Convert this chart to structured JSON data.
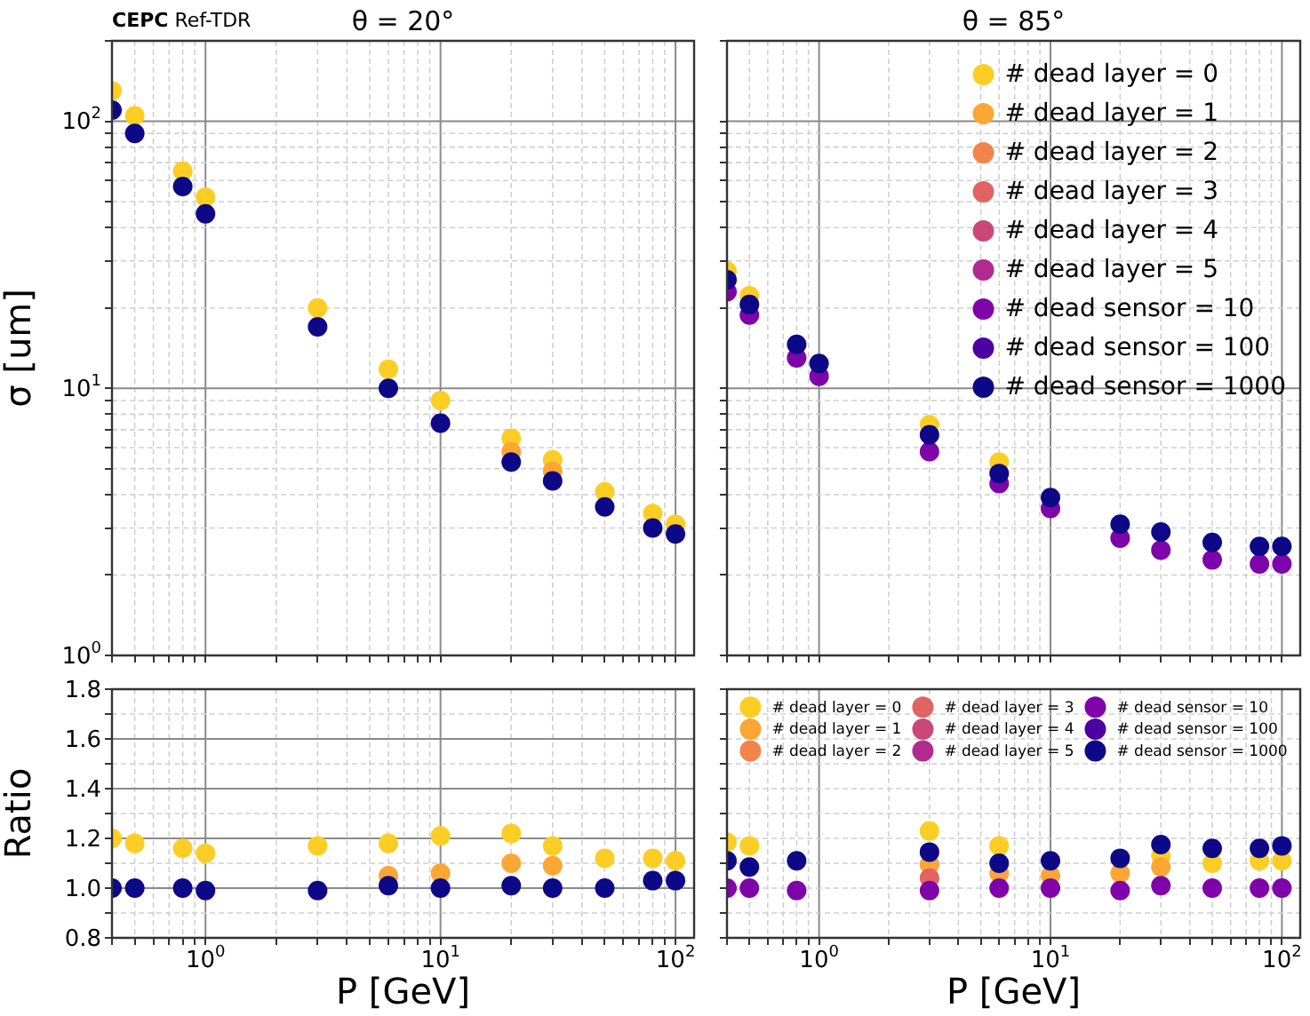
{
  "chart_data": [
    {
      "type": "scatter",
      "title": "θ = 20°",
      "ylabel": "σ [um]",
      "annotations": [
        "CEPC Ref-TDR"
      ],
      "log": "xy",
      "grid": true,
      "marker": "circle",
      "tick_labels": "y",
      "x": [
        0.4,
        0.5,
        0.8,
        1,
        3,
        6,
        10,
        20,
        30,
        50,
        80,
        100
      ],
      "xlim": [
        0.4,
        120
      ],
      "ylim": [
        1,
        200
      ],
      "xticks": [
        {
          "value": 0.4,
          "label": null
        },
        {
          "value": 0.5,
          "label": null
        },
        {
          "value": 0.6,
          "label": null
        },
        {
          "value": 0.7,
          "label": null
        },
        {
          "value": 0.8,
          "label": null
        },
        {
          "value": 0.9,
          "label": null
        },
        {
          "value": 1,
          "label": null
        },
        {
          "value": 2,
          "label": null
        },
        {
          "value": 3,
          "label": null
        },
        {
          "value": 4,
          "label": null
        },
        {
          "value": 5,
          "label": null
        },
        {
          "value": 6,
          "label": null
        },
        {
          "value": 7,
          "label": null
        },
        {
          "value": 8,
          "label": null
        },
        {
          "value": 9,
          "label": null
        },
        {
          "value": 10,
          "label": null
        },
        {
          "value": 20,
          "label": null
        },
        {
          "value": 30,
          "label": null
        },
        {
          "value": 40,
          "label": null
        },
        {
          "value": 50,
          "label": null
        },
        {
          "value": 60,
          "label": null
        },
        {
          "value": 70,
          "label": null
        },
        {
          "value": 80,
          "label": null
        },
        {
          "value": 90,
          "label": null
        },
        {
          "value": 100,
          "label": null
        }
      ],
      "yticks": [
        {
          "value": 1,
          "label": "10$^{0}$"
        },
        {
          "value": 2,
          "label": null
        },
        {
          "value": 3,
          "label": null
        },
        {
          "value": 4,
          "label": null
        },
        {
          "value": 5,
          "label": null
        },
        {
          "value": 6,
          "label": null
        },
        {
          "value": 7,
          "label": null
        },
        {
          "value": 8,
          "label": null
        },
        {
          "value": 9,
          "label": null
        },
        {
          "value": 10,
          "label": "10$^{1}$"
        },
        {
          "value": 20,
          "label": null
        },
        {
          "value": 30,
          "label": null
        },
        {
          "value": 40,
          "label": null
        },
        {
          "value": 50,
          "label": null
        },
        {
          "value": 60,
          "label": null
        },
        {
          "value": 70,
          "label": null
        },
        {
          "value": 80,
          "label": null
        },
        {
          "value": 90,
          "label": null
        },
        {
          "value": 100,
          "label": "10$^{2}$"
        },
        {
          "value": 200,
          "label": null
        }
      ],
      "series": [
        {
          "color": "#fcce25",
          "values": [
            130,
            105,
            65,
            52,
            20,
            11.8,
            9.0,
            6.5,
            5.4,
            4.1,
            3.4,
            3.1
          ]
        },
        {
          "color": "#fca636",
          "values": [
            null,
            null,
            null,
            null,
            null,
            null,
            null,
            5.8,
            4.9,
            null,
            null,
            null
          ]
        },
        {
          "color": "#0d0887",
          "values": [
            110,
            90,
            57,
            45,
            17,
            10,
            7.4,
            5.3,
            4.5,
            3.6,
            3.0,
            2.85
          ]
        }
      ]
    },
    {
      "type": "scatter",
      "title": "θ = 85°",
      "log": "xy",
      "grid": true,
      "marker": "circle",
      "tick_labels": false,
      "legend": "top right",
      "x": [
        0.4,
        0.5,
        0.8,
        1,
        3,
        6,
        10,
        20,
        30,
        50,
        80,
        100
      ],
      "xlim": [
        0.4,
        120
      ],
      "ylim": [
        1,
        200
      ],
      "xticks": [
        {
          "value": 0.4,
          "label": null
        },
        {
          "value": 0.5,
          "label": null
        },
        {
          "value": 0.6,
          "label": null
        },
        {
          "value": 0.7,
          "label": null
        },
        {
          "value": 0.8,
          "label": null
        },
        {
          "value": 0.9,
          "label": null
        },
        {
          "value": 1,
          "label": null
        },
        {
          "value": 2,
          "label": null
        },
        {
          "value": 3,
          "label": null
        },
        {
          "value": 4,
          "label": null
        },
        {
          "value": 5,
          "label": null
        },
        {
          "value": 6,
          "label": null
        },
        {
          "value": 7,
          "label": null
        },
        {
          "value": 8,
          "label": null
        },
        {
          "value": 9,
          "label": null
        },
        {
          "value": 10,
          "label": null
        },
        {
          "value": 20,
          "label": null
        },
        {
          "value": 30,
          "label": null
        },
        {
          "value": 40,
          "label": null
        },
        {
          "value": 50,
          "label": null
        },
        {
          "value": 60,
          "label": null
        },
        {
          "value": 70,
          "label": null
        },
        {
          "value": 80,
          "label": null
        },
        {
          "value": 90,
          "label": null
        },
        {
          "value": 100,
          "label": null
        }
      ],
      "yticks": [
        {
          "value": 1,
          "label": null
        },
        {
          "value": 2,
          "label": null
        },
        {
          "value": 3,
          "label": null
        },
        {
          "value": 4,
          "label": null
        },
        {
          "value": 5,
          "label": null
        },
        {
          "value": 6,
          "label": null
        },
        {
          "value": 7,
          "label": null
        },
        {
          "value": 8,
          "label": null
        },
        {
          "value": 9,
          "label": null
        },
        {
          "value": 10,
          "label": null
        },
        {
          "value": 20,
          "label": null
        },
        {
          "value": 30,
          "label": null
        },
        {
          "value": 40,
          "label": null
        },
        {
          "value": 50,
          "label": null
        },
        {
          "value": 60,
          "label": null
        },
        {
          "value": 70,
          "label": null
        },
        {
          "value": 80,
          "label": null
        },
        {
          "value": 90,
          "label": null
        },
        {
          "value": 100,
          "label": null
        },
        {
          "value": 200,
          "label": null
        }
      ],
      "series": [
        {
          "name": "# dead layer = 0",
          "color": "#fcce25",
          "values": [
            27.5,
            22.2,
            null,
            null,
            7.3,
            5.3,
            null,
            null,
            null,
            null,
            null,
            null
          ]
        },
        {
          "name": "# dead layer = 1",
          "color": "#fca636",
          "values": [
            null,
            null,
            null,
            null,
            null,
            null,
            null,
            null,
            null,
            null,
            null,
            null
          ]
        },
        {
          "name": "# dead layer = 2",
          "color": "#f2844b",
          "values": [
            null,
            null,
            null,
            null,
            null,
            null,
            null,
            null,
            null,
            null,
            null,
            null
          ]
        },
        {
          "name": "# dead layer = 3",
          "color": "#e16462",
          "values": [
            null,
            null,
            null,
            null,
            null,
            null,
            null,
            null,
            null,
            null,
            null,
            null
          ]
        },
        {
          "name": "# dead layer = 4",
          "color": "#cc4778",
          "values": [
            null,
            null,
            null,
            null,
            null,
            null,
            null,
            null,
            null,
            null,
            null,
            null
          ]
        },
        {
          "name": "# dead layer = 5",
          "color": "#b12a90",
          "values": [
            null,
            null,
            null,
            null,
            null,
            null,
            null,
            null,
            null,
            null,
            null,
            null
          ]
        },
        {
          "name": "# dead sensor = 10",
          "color": "#7e03a8",
          "values": [
            23,
            18.8,
            13,
            11.1,
            5.8,
            4.4,
            3.55,
            2.75,
            2.48,
            2.28,
            2.2,
            2.2
          ]
        },
        {
          "name": "# dead sensor = 100",
          "color": "#4c02a1",
          "values": [
            null,
            null,
            null,
            null,
            null,
            null,
            null,
            null,
            null,
            null,
            null,
            null
          ]
        },
        {
          "name": "# dead sensor = 1000",
          "color": "#0d0887",
          "values": [
            25.5,
            20.6,
            14.6,
            12.4,
            6.7,
            4.8,
            3.9,
            3.1,
            2.9,
            2.65,
            2.56,
            2.56
          ]
        }
      ]
    },
    {
      "type": "scatter",
      "xlabel": "P [GeV]",
      "ylabel": "Ratio",
      "log": "x",
      "grid": true,
      "marker": "circle",
      "x": [
        0.4,
        0.5,
        0.8,
        1,
        3,
        6,
        10,
        20,
        30,
        50,
        80,
        100
      ],
      "xlim": [
        0.4,
        120
      ],
      "ylim": [
        0.8,
        1.8
      ],
      "xticks": [
        {
          "value": 0.4,
          "label": null
        },
        {
          "value": 0.5,
          "label": null
        },
        {
          "value": 0.6,
          "label": null
        },
        {
          "value": 0.7,
          "label": null
        },
        {
          "value": 0.8,
          "label": null
        },
        {
          "value": 0.9,
          "label": null
        },
        {
          "value": 1,
          "label": "10$^{0}$"
        },
        {
          "value": 2,
          "label": null
        },
        {
          "value": 3,
          "label": null
        },
        {
          "value": 4,
          "label": null
        },
        {
          "value": 5,
          "label": null
        },
        {
          "value": 6,
          "label": null
        },
        {
          "value": 7,
          "label": null
        },
        {
          "value": 8,
          "label": null
        },
        {
          "value": 9,
          "label": null
        },
        {
          "value": 10,
          "label": "10$^{1}$"
        },
        {
          "value": 20,
          "label": null
        },
        {
          "value": 30,
          "label": null
        },
        {
          "value": 40,
          "label": null
        },
        {
          "value": 50,
          "label": null
        },
        {
          "value": 60,
          "label": null
        },
        {
          "value": 70,
          "label": null
        },
        {
          "value": 80,
          "label": null
        },
        {
          "value": 90,
          "label": null
        },
        {
          "value": 100,
          "label": "10$^{2}$"
        }
      ],
      "yticks": [
        0.8,
        {
          "value": 0.9,
          "label": null
        },
        {
          "value": 1,
          "label": "1.0"
        },
        {
          "value": 1.1,
          "label": null
        },
        1.2,
        {
          "value": 1.3,
          "label": null
        },
        1.4,
        {
          "value": 1.5,
          "label": null
        },
        1.6,
        {
          "value": 1.7,
          "label": null
        },
        1.8
      ],
      "series": [
        {
          "color": "#fcce25",
          "values": [
            1.2,
            1.18,
            1.16,
            1.14,
            1.17,
            1.18,
            1.21,
            1.22,
            1.17,
            1.12,
            1.12,
            1.11
          ]
        },
        {
          "color": "#fca636",
          "values": [
            null,
            null,
            null,
            null,
            null,
            1.05,
            1.06,
            1.1,
            1.09,
            null,
            null,
            null
          ]
        },
        {
          "color": "#0d0887",
          "values": [
            1.0,
            1.0,
            1.0,
            0.99,
            0.99,
            1.01,
            1.0,
            1.01,
            1.0,
            1.0,
            1.03,
            1.03
          ]
        }
      ]
    },
    {
      "type": "scatter",
      "xlabel": "P [GeV]",
      "log": "x",
      "grid": true,
      "marker": "circle",
      "tick_labels": "x",
      "legend": "top",
      "x": [
        0.4,
        0.5,
        0.8,
        1,
        3,
        6,
        10,
        20,
        30,
        50,
        80,
        100
      ],
      "xlim": [
        0.4,
        120
      ],
      "ylim": [
        0.8,
        1.8
      ],
      "xticks": [
        {
          "value": 0.4,
          "label": null
        },
        {
          "value": 0.5,
          "label": null
        },
        {
          "value": 0.6,
          "label": null
        },
        {
          "value": 0.7,
          "label": null
        },
        {
          "value": 0.8,
          "label": null
        },
        {
          "value": 0.9,
          "label": null
        },
        {
          "value": 1,
          "label": "10$^{0}$"
        },
        {
          "value": 2,
          "label": null
        },
        {
          "value": 3,
          "label": null
        },
        {
          "value": 4,
          "label": null
        },
        {
          "value": 5,
          "label": null
        },
        {
          "value": 6,
          "label": null
        },
        {
          "value": 7,
          "label": null
        },
        {
          "value": 8,
          "label": null
        },
        {
          "value": 9,
          "label": null
        },
        {
          "value": 10,
          "label": "10$^{1}$"
        },
        {
          "value": 20,
          "label": null
        },
        {
          "value": 30,
          "label": null
        },
        {
          "value": 40,
          "label": null
        },
        {
          "value": 50,
          "label": null
        },
        {
          "value": 60,
          "label": null
        },
        {
          "value": 70,
          "label": null
        },
        {
          "value": 80,
          "label": null
        },
        {
          "value": 90,
          "label": null
        },
        {
          "value": 100,
          "label": "10$^{2}$"
        }
      ],
      "yticks": [
        {
          "value": 0.8,
          "label": null
        },
        {
          "value": 0.9,
          "label": null
        },
        {
          "value": 1,
          "label": null
        },
        {
          "value": 1.1,
          "label": null
        },
        {
          "value": 1.2,
          "label": null
        },
        {
          "value": 1.3,
          "label": null
        },
        {
          "value": 1.4,
          "label": null
        },
        {
          "value": 1.5,
          "label": null
        },
        {
          "value": 1.6,
          "label": null
        },
        {
          "value": 1.7,
          "label": null
        },
        {
          "value": 1.8,
          "label": null
        }
      ],
      "series": [
        {
          "name": "# dead layer = 0",
          "color": "#fcce25",
          "values": [
            1.185,
            1.17,
            null,
            null,
            1.23,
            1.17,
            null,
            null,
            1.13,
            1.1,
            1.11,
            1.11
          ]
        },
        {
          "name": "# dead layer = 1",
          "color": "#fca636",
          "values": [
            null,
            null,
            null,
            null,
            1.095,
            1.06,
            1.05,
            1.06,
            1.085,
            null,
            null,
            null
          ]
        },
        {
          "name": "# dead layer = 2",
          "color": "#f2844b",
          "values": [
            null,
            null,
            null,
            null,
            null,
            null,
            null,
            null,
            null,
            null,
            null,
            null
          ]
        },
        {
          "name": "# dead layer = 3",
          "color": "#e16462",
          "values": [
            null,
            null,
            null,
            null,
            1.04,
            null,
            null,
            null,
            null,
            null,
            null,
            null
          ]
        },
        {
          "name": "# dead layer = 4",
          "color": "#cc4778",
          "values": [
            null,
            null,
            null,
            null,
            null,
            null,
            null,
            null,
            null,
            null,
            null,
            null
          ]
        },
        {
          "name": "# dead layer = 5",
          "color": "#b12a90",
          "values": [
            null,
            null,
            null,
            null,
            null,
            null,
            null,
            null,
            null,
            null,
            null,
            null
          ]
        },
        {
          "name": "# dead sensor = 10",
          "color": "#7e03a8",
          "values": [
            1.0,
            1.0,
            0.99,
            null,
            0.99,
            1.0,
            1.0,
            0.99,
            1.01,
            1.0,
            1.0,
            1.0
          ]
        },
        {
          "name": "# dead sensor = 100",
          "color": "#4c02a1",
          "values": [
            null,
            null,
            null,
            null,
            null,
            null,
            null,
            null,
            null,
            null,
            null,
            null
          ]
        },
        {
          "name": "# dead sensor = 1000",
          "color": "#0d0887",
          "values": [
            1.11,
            1.085,
            1.11,
            null,
            1.145,
            1.1,
            1.11,
            1.12,
            1.175,
            1.16,
            1.16,
            1.17
          ]
        }
      ]
    }
  ]
}
